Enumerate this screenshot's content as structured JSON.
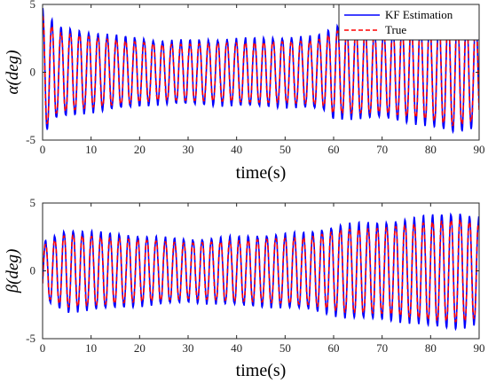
{
  "chart_data": [
    {
      "type": "line",
      "xlabel": "time(s)",
      "ylabel": "α(deg)",
      "xlim": [
        0,
        90
      ],
      "ylim": [
        -5,
        5
      ],
      "xticks": [
        0,
        10,
        20,
        30,
        40,
        50,
        60,
        70,
        80,
        90
      ],
      "yticks": [
        -5,
        0,
        5
      ],
      "grid": false,
      "legend": "top-right",
      "signal_description": "sinusoid with period ~1.9 s; amplitude ~3 around t=3, decays to ~2 by t=30, ~2.2 to t=58, then ~3.3 grows to ~4.4 near t=86",
      "period_s": 1.9,
      "amplitude_envelope": {
        "t": [
          0,
          3,
          12,
          25,
          35,
          45,
          55,
          58,
          60,
          70,
          80,
          85,
          90
        ],
        "a": [
          4.5,
          3.2,
          2.7,
          2.2,
          2.3,
          2.4,
          2.5,
          2.7,
          3.3,
          3.2,
          3.8,
          4.3,
          3.8
        ]
      },
      "series": [
        {
          "name": "KF Estimation",
          "color": "#0000ff",
          "style": "solid"
        },
        {
          "name": "True",
          "color": "#ff0000",
          "style": "dashed"
        }
      ]
    },
    {
      "type": "line",
      "xlabel": "time(s)",
      "ylabel": "β(deg)",
      "xlim": [
        0,
        90
      ],
      "ylim": [
        -5,
        5
      ],
      "xticks": [
        0,
        10,
        20,
        30,
        40,
        50,
        60,
        70,
        80,
        90
      ],
      "yticks": [
        -5,
        0,
        5
      ],
      "grid": false,
      "period_s": 1.9,
      "amplitude_envelope": {
        "t": [
          0,
          5,
          15,
          30,
          45,
          55,
          62,
          70,
          80,
          86,
          90
        ],
        "a": [
          2.0,
          2.9,
          2.6,
          2.2,
          2.5,
          2.7,
          3.3,
          3.4,
          3.9,
          4.1,
          3.7
        ]
      },
      "series": [
        {
          "name": "KF Estimation",
          "color": "#0000ff",
          "style": "solid"
        },
        {
          "name": "True",
          "color": "#ff0000",
          "style": "dashed"
        }
      ]
    }
  ]
}
